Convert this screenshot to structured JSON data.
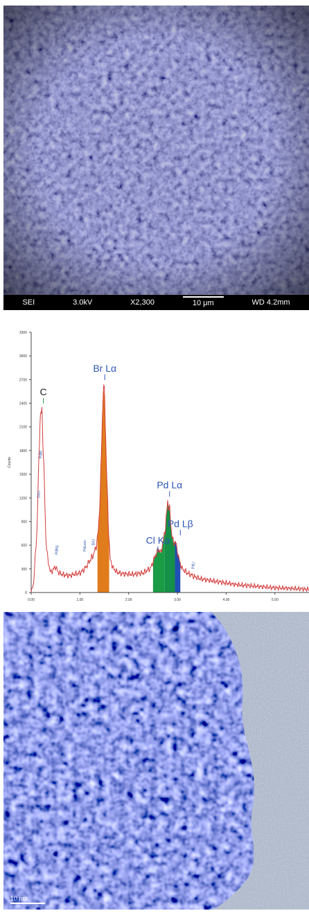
{
  "sem": {
    "mode": "SEI",
    "voltage": "3.0kV",
    "magnification": "X2,300",
    "scale": "10 μm",
    "working_distance": "WD 4.2mm"
  },
  "tem": {
    "scale": "10 nm"
  },
  "colors": {
    "spectrum": "#d33b3b",
    "label": "#2b55b0",
    "br_fill": "#e07c1c",
    "cl_fill": "#1a9b45",
    "pd_la_fill": "#149048",
    "pd_lb_fill": "#1f4fb5"
  },
  "chart_data": {
    "type": "line",
    "ylabel": "Counts",
    "xlabel": "",
    "xlim": [
      0,
      5.7
    ],
    "ylim": [
      0,
      3300
    ],
    "x_ticks": [
      "0.00",
      "1.00",
      "2.00",
      "3.00",
      "4.00",
      "5.00"
    ],
    "y_ticks": [
      "0",
      "300",
      "600",
      "900",
      "1200",
      "1500",
      "1800",
      "2100",
      "2400",
      "2700",
      "3000",
      "3300"
    ],
    "series": [
      {
        "x": [
          0.0,
          0.05,
          0.12,
          0.18,
          0.22,
          0.26,
          0.3,
          0.34,
          0.4,
          0.5,
          0.55,
          0.6,
          0.7,
          0.8,
          0.9,
          1.0,
          1.1,
          1.2,
          1.28,
          1.34,
          1.38,
          1.42,
          1.45,
          1.48,
          1.51,
          1.54,
          1.58,
          1.62,
          1.68,
          1.76,
          1.85,
          1.95,
          2.1,
          2.3,
          2.45,
          2.55,
          2.62,
          2.66,
          2.7,
          2.75,
          2.8,
          2.84,
          2.88,
          2.92,
          2.96,
          3.0,
          3.05,
          3.1,
          3.2,
          3.35,
          3.5,
          3.8,
          4.2,
          4.6,
          5.0,
          5.4,
          5.7
        ],
        "y": [
          0,
          120,
          800,
          2200,
          2300,
          1600,
          700,
          420,
          250,
          330,
          260,
          240,
          220,
          215,
          235,
          245,
          300,
          400,
          480,
          600,
          800,
          1300,
          2000,
          2600,
          2450,
          1700,
          900,
          420,
          310,
          260,
          240,
          235,
          230,
          250,
          310,
          470,
          550,
          500,
          620,
          800,
          1150,
          1050,
          760,
          620,
          650,
          520,
          380,
          300,
          250,
          200,
          170,
          140,
          100,
          80,
          60,
          50,
          40
        ]
      }
    ],
    "peak_labels": [
      {
        "label": "C",
        "x": 0.25,
        "y": 2500
      },
      {
        "label": "Br Lα",
        "x": 1.51,
        "y": 2800
      },
      {
        "label": "Pd Lα",
        "x": 2.84,
        "y": 1320
      },
      {
        "label": "Cl Kα",
        "x": 2.6,
        "y": 620
      },
      {
        "label": "Pd Lβ",
        "x": 3.06,
        "y": 830
      }
    ],
    "minor_labels": [
      {
        "label": "PdMi",
        "x": 0.22,
        "y": 1700
      },
      {
        "label": "ClLn",
        "x": 0.18,
        "y": 1200
      },
      {
        "label": "PdMg",
        "x": 0.55,
        "y": 480
      },
      {
        "label": "PdLesc",
        "x": 1.12,
        "y": 520
      },
      {
        "label": "BrLl",
        "x": 1.3,
        "y": 600
      },
      {
        "label": "PdLr",
        "x": 3.35,
        "y": 300
      }
    ]
  }
}
